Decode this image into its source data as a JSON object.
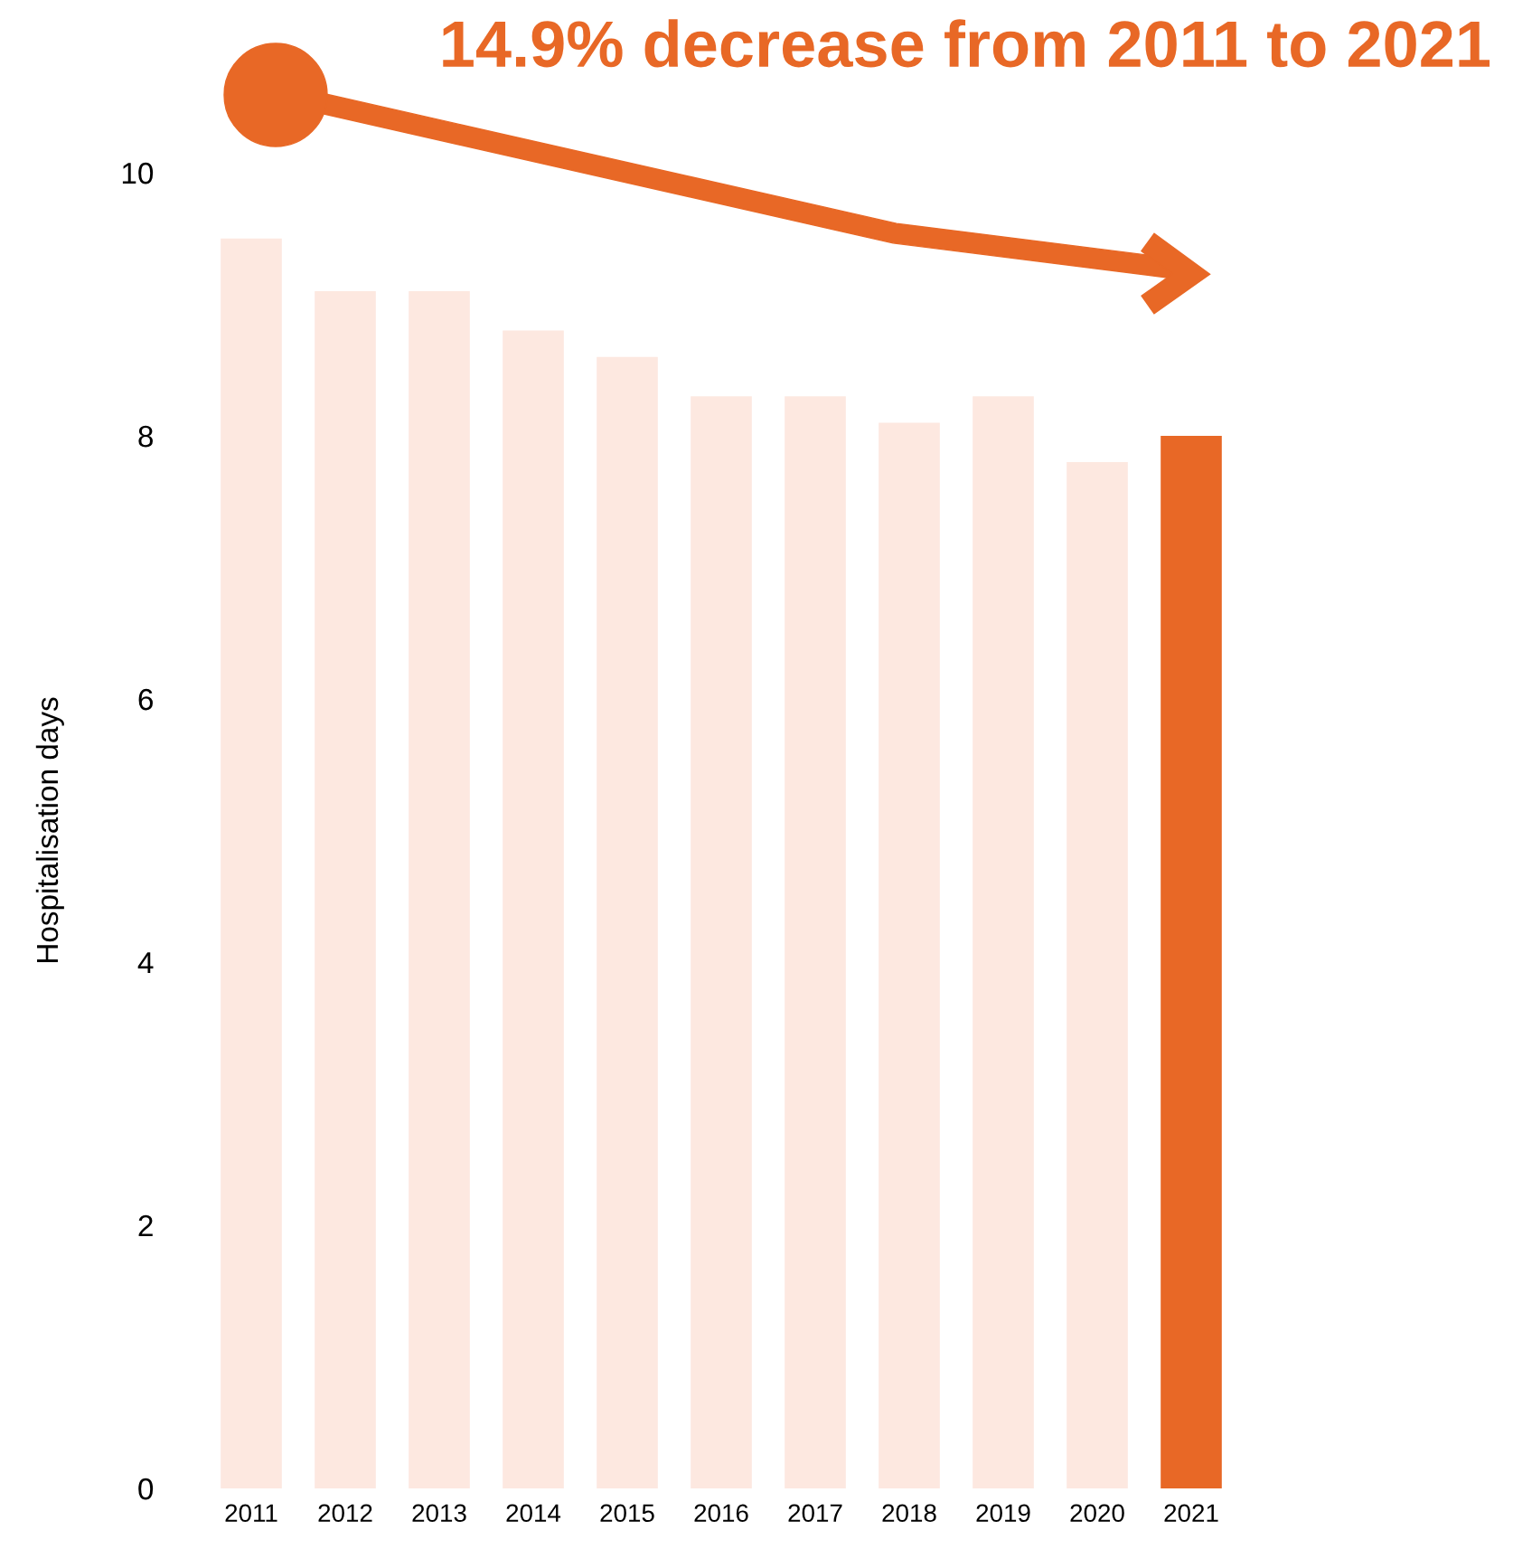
{
  "chart_data": {
    "type": "bar",
    "title": "14.9% decrease from 2011 to 2021",
    "ylabel": "Hospitalisation days",
    "categories": [
      "2011",
      "2012",
      "2013",
      "2014",
      "2015",
      "2016",
      "2017",
      "2018",
      "2019",
      "2020",
      "2021"
    ],
    "values": [
      9.5,
      9.1,
      9.1,
      8.8,
      8.6,
      8.3,
      8.3,
      8.1,
      8.3,
      7.8,
      8.0
    ],
    "colors": [
      "#fde8e0",
      "#fde8e0",
      "#fde8e0",
      "#fde8e0",
      "#fde8e0",
      "#fde8e0",
      "#fde8e0",
      "#fde8e0",
      "#fde8e0",
      "#fde8e0",
      "#e86826"
    ],
    "ylim": [
      0,
      10
    ],
    "yticks": [
      0,
      2,
      4,
      6,
      8,
      10
    ]
  }
}
